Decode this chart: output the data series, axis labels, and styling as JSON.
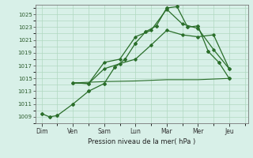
{
  "title": "",
  "xlabel": "Pression niveau de la mer( hPa )",
  "bg_color": "#d8f0e8",
  "grid_color": "#b0d8c0",
  "line_color": "#2a6e2a",
  "days": [
    "Dim",
    "Ven",
    "Sam",
    "Lun",
    "Mar",
    "Mer",
    "Jeu"
  ],
  "day_positions": [
    0,
    1,
    2,
    3,
    4,
    5,
    6
  ],
  "ylim": [
    1008.0,
    1026.5
  ],
  "yticks": [
    1009,
    1011,
    1013,
    1015,
    1017,
    1019,
    1021,
    1023,
    1025
  ],
  "line1_x": [
    0,
    0.25,
    0.5,
    1.0,
    1.5,
    2.0,
    2.33,
    2.67,
    3.0,
    3.33,
    3.67,
    4.0,
    4.33,
    4.67,
    5.0,
    5.33,
    5.67,
    6.0
  ],
  "line1_y": [
    1009.5,
    1009.0,
    1009.2,
    1011.0,
    1013.0,
    1014.2,
    1016.7,
    1018.0,
    1020.5,
    1022.3,
    1023.2,
    1026.0,
    1026.2,
    1023.0,
    1023.2,
    1019.2,
    1017.5,
    1015.0
  ],
  "line2_x": [
    1.0,
    1.5,
    2.0,
    2.5,
    3.0,
    3.5,
    4.0,
    4.5,
    5.0,
    5.5,
    6.0
  ],
  "line2_y": [
    1014.3,
    1014.2,
    1017.5,
    1018.0,
    1021.5,
    1022.5,
    1025.8,
    1023.5,
    1022.8,
    1019.5,
    1016.5
  ],
  "line3_x": [
    1.0,
    1.5,
    2.0,
    2.5,
    3.0,
    3.5,
    4.0,
    4.5,
    5.0,
    5.5,
    6.0
  ],
  "line3_y": [
    1014.3,
    1014.2,
    1016.5,
    1017.3,
    1018.0,
    1020.2,
    1022.5,
    1021.8,
    1021.5,
    1021.8,
    1016.5
  ],
  "line4_x": [
    1.0,
    2.0,
    3.0,
    4.0,
    5.0,
    6.0
  ],
  "line4_y": [
    1014.3,
    1014.5,
    1014.6,
    1014.8,
    1014.8,
    1015.0
  ],
  "xlim": [
    -0.2,
    6.6
  ]
}
